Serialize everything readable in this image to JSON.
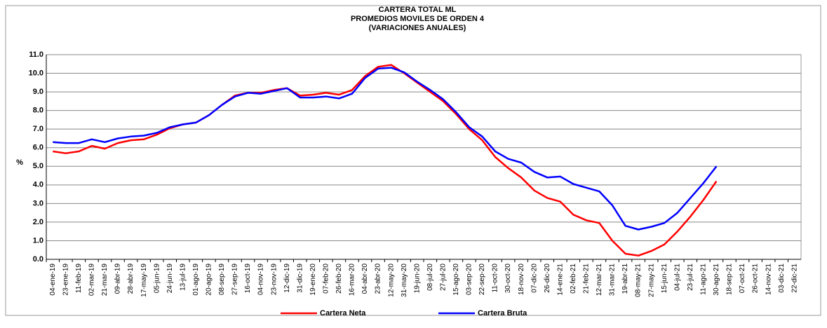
{
  "chart_data": {
    "type": "line",
    "title": [
      "CARTERA TOTAL ML",
      "PROMEDIOS MOVILES DE ORDEN 4",
      "(VARIACIONES ANUALES)"
    ],
    "y_label": "%",
    "categories": [
      "04-ene-19",
      "23-ene-19",
      "11-feb-19",
      "02-mar-19",
      "21-mar-19",
      "09-abr-19",
      "28-abr-19",
      "17-may-19",
      "05-jun-19",
      "24-jun-19",
      "13-jul-19",
      "01-ago-19",
      "20-ago-19",
      "08-sep-19",
      "27-sep-19",
      "16-oct-19",
      "04-nov-19",
      "23-nov-19",
      "12-dic-19",
      "31-dic-19",
      "19-ene-20",
      "07-feb-20",
      "26-feb-20",
      "16-mar-20",
      "04-abr-20",
      "23-abr-20",
      "12-may-20",
      "31-may-20",
      "19-jun-20",
      "08-jul-20",
      "27-jul-20",
      "15-ago-20",
      "03-sep-20",
      "22-sep-20",
      "11-oct-20",
      "30-oct-20",
      "18-nov-20",
      "07-dic-20",
      "26-dic-20",
      "14-ene-21",
      "02-feb-21",
      "21-feb-21",
      "12-mar-21",
      "31-mar-21",
      "19-abr-21",
      "08-may-21",
      "27-may-21",
      "15-jun-21",
      "04-jul-21",
      "23-jul-21",
      "11-ago-21",
      "30-ago-21",
      "18-sep-21",
      "07-oct-21",
      "26-oct-21",
      "14-nov-21",
      "03-dic-21",
      "22-dic-21"
    ],
    "series": [
      {
        "name": "Cartera Neta",
        "color": "#ff0000",
        "values": [
          5.8,
          5.7,
          5.8,
          6.1,
          5.95,
          6.25,
          6.4,
          6.45,
          6.7,
          7.05,
          7.25,
          7.35,
          7.75,
          8.3,
          8.8,
          8.95,
          8.95,
          9.1,
          9.2,
          8.8,
          8.85,
          8.95,
          8.85,
          9.1,
          9.85,
          10.35,
          10.45,
          10.0,
          9.5,
          9.0,
          8.5,
          7.8,
          7.0,
          6.4,
          5.5,
          4.9,
          4.4,
          3.7,
          3.3,
          3.1,
          2.4,
          2.1,
          1.95,
          1.0,
          0.3,
          0.2,
          0.45,
          0.8,
          1.5,
          2.3,
          3.2,
          4.2,
          null,
          null,
          null,
          null,
          null,
          null
        ]
      },
      {
        "name": "Cartera Bruta",
        "color": "#0000ff",
        "values": [
          6.3,
          6.25,
          6.25,
          6.45,
          6.3,
          6.5,
          6.6,
          6.65,
          6.8,
          7.1,
          7.25,
          7.35,
          7.75,
          8.3,
          8.75,
          8.95,
          8.9,
          9.05,
          9.2,
          8.7,
          8.7,
          8.75,
          8.65,
          8.9,
          9.75,
          10.25,
          10.3,
          10.05,
          9.55,
          9.1,
          8.6,
          7.9,
          7.1,
          6.6,
          5.8,
          5.4,
          5.2,
          4.7,
          4.4,
          4.45,
          4.05,
          3.85,
          3.65,
          2.9,
          1.8,
          1.6,
          1.75,
          1.95,
          2.5,
          3.3,
          4.1,
          5.0,
          null,
          null,
          null,
          null,
          null,
          null
        ]
      }
    ],
    "ylim": [
      0,
      11
    ],
    "yticks": [
      {
        "value": 0,
        "label": "0.0"
      },
      {
        "value": 1,
        "label": "1.0"
      },
      {
        "value": 2,
        "label": "2.0"
      },
      {
        "value": 3,
        "label": "3.0"
      },
      {
        "value": 4,
        "label": "4.0"
      },
      {
        "value": 5,
        "label": "5.0"
      },
      {
        "value": 6,
        "label": "6.0"
      },
      {
        "value": 7,
        "label": "7.0"
      },
      {
        "value": 8,
        "label": "8.0"
      },
      {
        "value": 9,
        "label": "9.0"
      },
      {
        "value": 10,
        "label": "10.0"
      },
      {
        "value": 11,
        "label": "11.0"
      }
    ],
    "grid": true,
    "legend": "bottom"
  }
}
